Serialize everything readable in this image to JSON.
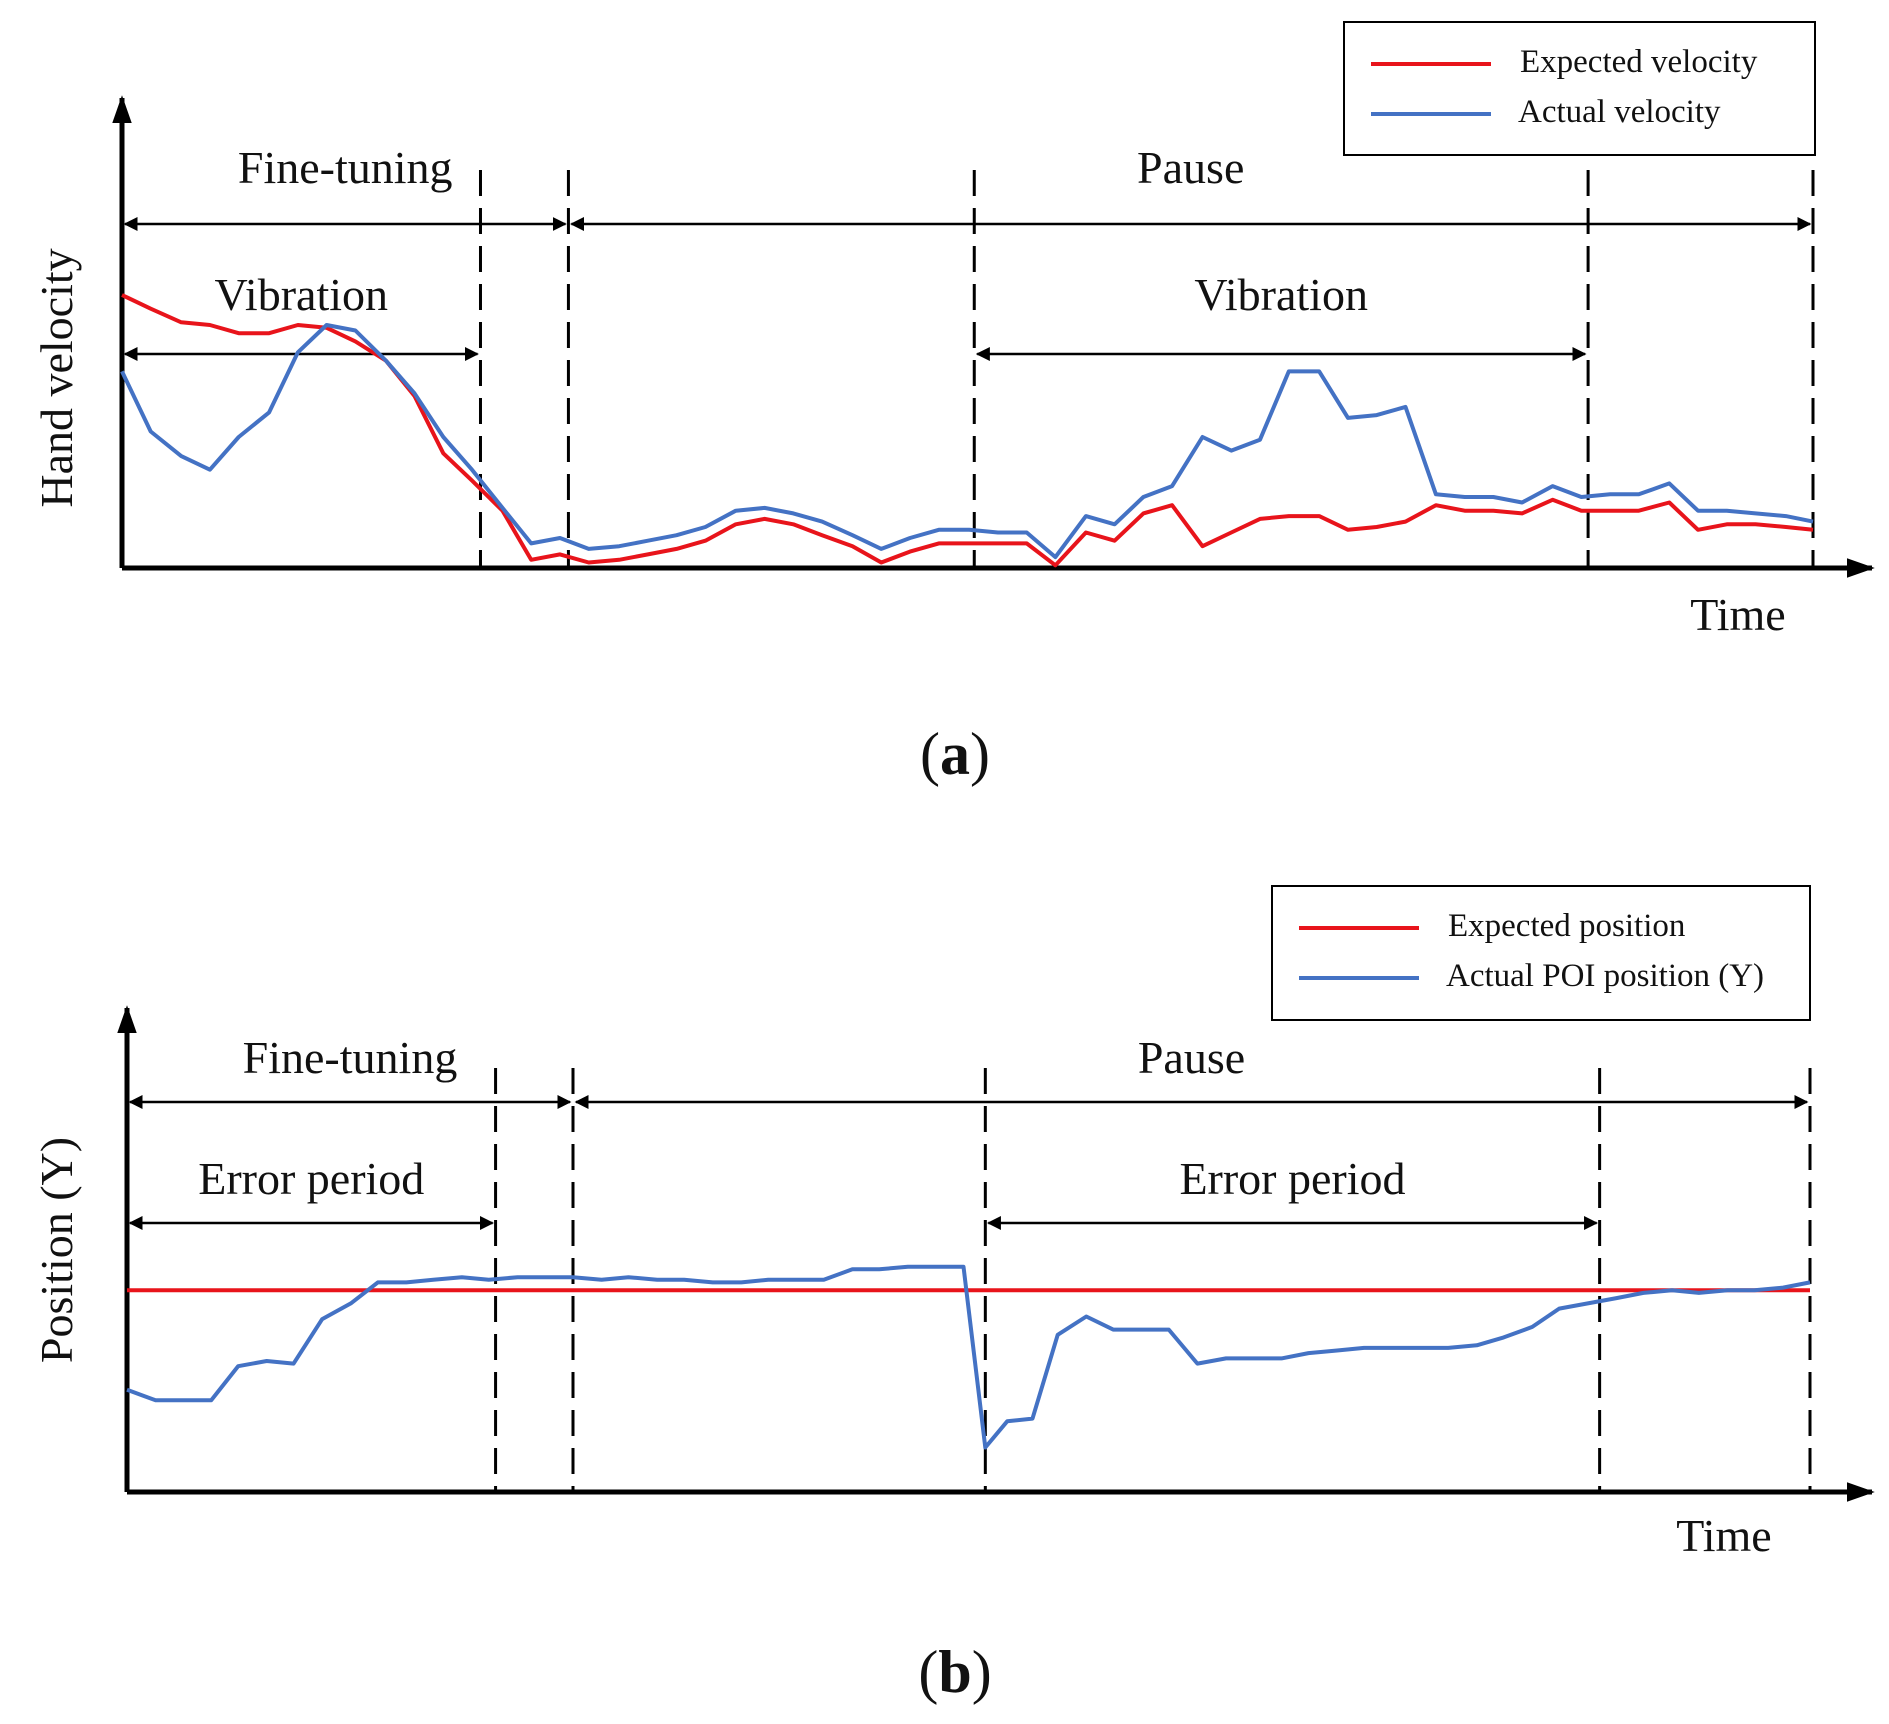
{
  "chart_data": [
    {
      "type": "line",
      "panel_label": {
        "open": "(",
        "letter": "a",
        "close": ")"
      },
      "ylabel": "Hand velocity",
      "xlabel": "Time",
      "xlim": [
        0,
        100
      ],
      "ylim": [
        0,
        100
      ],
      "legend": {
        "placement": "top-right",
        "entries": [
          "Expected velocity",
          "Actual velocity"
        ]
      },
      "colors": {
        "expected": "#e8141b",
        "actual": "#4472c4",
        "axis": "#000000"
      },
      "x": [
        0,
        1.7,
        3.5,
        5.2,
        6.9,
        8.7,
        10.4,
        12.1,
        13.8,
        15.6,
        17.3,
        19.0,
        20.7,
        22.5,
        24.2,
        25.9,
        27.6,
        29.4,
        31.1,
        32.8,
        34.5,
        36.3,
        38.0,
        39.7,
        41.4,
        43.2,
        44.9,
        46.6,
        48.3,
        50.1,
        51.8,
        53.5,
        55.2,
        57.0,
        58.7,
        60.4,
        62.1,
        63.9,
        65.6,
        67.3,
        69.0,
        70.8,
        72.5,
        74.2,
        75.9,
        77.7,
        79.4,
        81.1,
        82.8,
        84.6,
        86.3,
        88.0,
        89.7,
        91.5,
        93.2,
        94.9,
        96.6,
        98.4,
        100
      ],
      "series": [
        {
          "name": "Expected velocity",
          "key": "expected",
          "values": [
            100,
            95,
            90,
            89,
            86,
            86,
            89,
            88,
            83,
            76,
            63,
            42,
            32,
            21,
            3,
            5,
            2,
            3,
            5,
            7,
            10,
            16,
            18,
            16,
            12,
            8,
            2,
            6,
            9,
            9,
            9,
            9,
            1,
            13,
            10,
            20,
            23,
            8,
            13,
            18,
            19,
            19,
            14,
            15,
            17,
            23,
            21,
            21,
            20,
            25,
            21,
            21,
            21,
            24,
            14,
            16,
            16,
            15,
            14
          ]
        },
        {
          "name": "Actual velocity",
          "key": "actual",
          "values": [
            72,
            50,
            41,
            36,
            48,
            57,
            79,
            89,
            87,
            76,
            64,
            48,
            36,
            22,
            9,
            11,
            7,
            8,
            10,
            12,
            15,
            21,
            22,
            20,
            17,
            12,
            7,
            11,
            14,
            14,
            13,
            13,
            4,
            19,
            16,
            26,
            30,
            48,
            43,
            47,
            72,
            72,
            55,
            56,
            59,
            27,
            26,
            26,
            24,
            30,
            26,
            27,
            27,
            31,
            21,
            21,
            20,
            19,
            17
          ]
        }
      ],
      "ymax_value": 92,
      "guides": [
        {
          "x": 0,
          "style": "axis"
        },
        {
          "x": 21.2,
          "style": "dashed"
        },
        {
          "x": 26.4,
          "style": "dashed"
        },
        {
          "x": 50.4,
          "style": "dashed"
        },
        {
          "x": 86.7,
          "style": "dashed"
        },
        {
          "x": 100,
          "style": "dashed"
        }
      ],
      "spans": [
        {
          "label": "Fine-tuning",
          "from": 0,
          "to": 26.4,
          "level": "upper"
        },
        {
          "label": "Pause",
          "from": 26.4,
          "to": 100,
          "level": "upper"
        },
        {
          "label": "Vibration",
          "from": 0,
          "to": 21.2,
          "level": "lower"
        },
        {
          "label": "Vibration",
          "from": 50.4,
          "to": 86.7,
          "level": "lower"
        }
      ]
    },
    {
      "type": "line",
      "panel_label": {
        "open": "(",
        "letter": "b",
        "close": ")"
      },
      "ylabel": "Position (Y)",
      "xlabel": "Time",
      "xlim": [
        0,
        100
      ],
      "ylim": [
        0,
        100
      ],
      "legend": {
        "placement": "top-right",
        "entries": [
          "Expected position",
          "Actual POI position (Y)"
        ]
      },
      "colors": {
        "expected": "#e8141b",
        "actual": "#4472c4",
        "axis": "#000000"
      },
      "x": [
        0,
        1.7,
        3.3,
        5.0,
        6.6,
        8.3,
        9.9,
        11.6,
        13.3,
        14.9,
        16.6,
        18.2,
        19.9,
        21.5,
        23.2,
        24.9,
        26.5,
        28.2,
        29.8,
        31.5,
        33.1,
        34.8,
        36.5,
        38.1,
        39.8,
        41.4,
        43.1,
        44.7,
        46.4,
        48.1,
        49.7,
        51.0,
        52.3,
        53.8,
        55.3,
        57.0,
        58.6,
        60.3,
        61.9,
        63.6,
        65.3,
        66.9,
        68.6,
        70.2,
        71.9,
        73.5,
        75.2,
        76.9,
        78.5,
        80.2,
        81.8,
        83.5,
        85.1,
        86.8,
        88.5,
        90.1,
        91.8,
        93.4,
        95.1,
        96.7,
        98.4,
        100
      ],
      "series": [
        {
          "name": "Expected position",
          "key": "expected",
          "values": [
            77,
            77,
            77,
            77,
            77,
            77,
            77,
            77,
            77,
            77,
            77,
            77,
            77,
            77,
            77,
            77,
            77,
            77,
            77,
            77,
            77,
            77,
            77,
            77,
            77,
            77,
            77,
            77,
            77,
            77,
            77,
            77,
            77,
            77,
            77,
            77,
            77,
            77,
            77,
            77,
            77,
            77,
            77,
            77,
            77,
            77,
            77,
            77,
            77,
            77,
            77,
            77,
            77,
            77,
            77,
            77,
            77,
            77,
            77,
            77,
            77,
            77
          ]
        },
        {
          "name": "Actual POI position (Y)",
          "key": "actual",
          "values": [
            39,
            35,
            35,
            35,
            48,
            50,
            49,
            66,
            72,
            80,
            80,
            81,
            82,
            81,
            82,
            82,
            82,
            81,
            82,
            81,
            81,
            80,
            80,
            81,
            81,
            81,
            85,
            85,
            86,
            86,
            86,
            17,
            27,
            28,
            60,
            67,
            62,
            62,
            62,
            49,
            51,
            51,
            51,
            53,
            54,
            55,
            55,
            55,
            55,
            56,
            59,
            63,
            70,
            72,
            74,
            76,
            77,
            76,
            77,
            77,
            78,
            80
          ]
        }
      ],
      "ymax_value": 102,
      "guides": [
        {
          "x": 0,
          "style": "axis"
        },
        {
          "x": 21.9,
          "style": "dashed"
        },
        {
          "x": 26.5,
          "style": "dashed"
        },
        {
          "x": 51.0,
          "style": "dashed"
        },
        {
          "x": 87.5,
          "style": "dashed"
        },
        {
          "x": 100,
          "style": "dashed"
        }
      ],
      "spans": [
        {
          "label": "Fine-tuning",
          "from": 0,
          "to": 26.5,
          "level": "upper"
        },
        {
          "label": "Pause",
          "from": 26.5,
          "to": 100,
          "level": "upper"
        },
        {
          "label": "Error period",
          "from": 0,
          "to": 21.9,
          "level": "lower"
        },
        {
          "label": "Error period",
          "from": 51.0,
          "to": 87.5,
          "level": "lower"
        }
      ]
    }
  ]
}
